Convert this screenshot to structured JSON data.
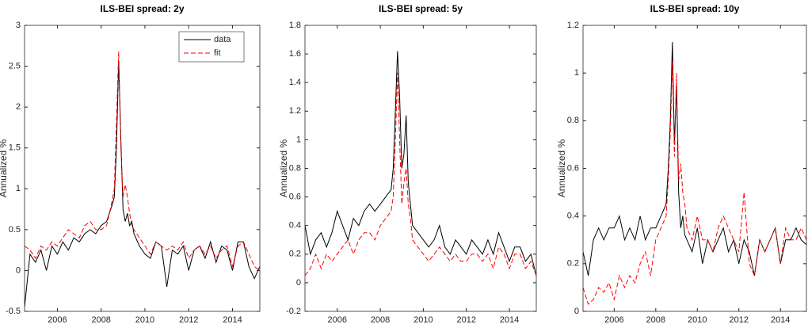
{
  "chart_data": [
    {
      "type": "line",
      "title": "ILS-BEI spread: 2y",
      "ylabel": "Annualized %",
      "legend": "northeast",
      "x": [
        2004.5,
        2004.75,
        2005,
        2005.25,
        2005.5,
        2005.75,
        2006,
        2006.25,
        2006.5,
        2006.75,
        2007,
        2007.25,
        2007.5,
        2007.75,
        2008,
        2008.25,
        2008.5,
        2008.6,
        2008.7,
        2008.8,
        2008.9,
        2009,
        2009.1,
        2009.2,
        2009.3,
        2009.4,
        2009.5,
        2009.75,
        2010,
        2010.25,
        2010.5,
        2010.75,
        2011,
        2011.25,
        2011.5,
        2011.75,
        2012,
        2012.25,
        2012.5,
        2012.75,
        2013,
        2013.25,
        2013.5,
        2013.75,
        2014,
        2014.25,
        2014.5,
        2014.75,
        2015,
        2015.25
      ],
      "xlim": [
        2004.5,
        2015.25
      ],
      "xticks": [
        2006,
        2008,
        2010,
        2012,
        2014
      ],
      "ylim": [
        -0.5,
        3
      ],
      "yticks": [
        -0.5,
        0,
        0.5,
        1,
        1.5,
        2,
        2.5,
        3
      ],
      "series": [
        {
          "name": "data",
          "color": "#000000",
          "dash": "solid",
          "values": [
            -0.45,
            0.2,
            0.1,
            0.25,
            0.0,
            0.3,
            0.2,
            0.35,
            0.25,
            0.4,
            0.35,
            0.45,
            0.5,
            0.45,
            0.55,
            0.6,
            0.8,
            0.9,
            1.5,
            2.55,
            1.6,
            0.75,
            0.6,
            0.7,
            0.55,
            0.6,
            0.45,
            0.3,
            0.2,
            0.15,
            0.35,
            0.3,
            -0.2,
            0.25,
            0.2,
            0.3,
            0.0,
            0.25,
            0.3,
            0.15,
            0.35,
            0.1,
            0.3,
            0.25,
            0.0,
            0.35,
            0.35,
            0.05,
            -0.1,
            0.05
          ]
        },
        {
          "name": "fit",
          "color": "#ff0000",
          "dash": "dashed",
          "values": [
            0.3,
            0.25,
            0.15,
            0.3,
            0.25,
            0.35,
            0.3,
            0.4,
            0.5,
            0.45,
            0.4,
            0.55,
            0.6,
            0.5,
            0.5,
            0.55,
            0.85,
            1.0,
            1.8,
            2.68,
            1.5,
            0.9,
            1.05,
            0.9,
            0.7,
            0.55,
            0.5,
            0.4,
            0.3,
            0.2,
            0.35,
            0.3,
            0.25,
            0.3,
            0.25,
            0.35,
            0.15,
            0.25,
            0.3,
            0.2,
            0.3,
            0.15,
            0.25,
            0.3,
            0.05,
            0.3,
            0.35,
            0.2,
            0.05,
            0.0
          ]
        }
      ]
    },
    {
      "type": "line",
      "title": "ILS-BEI spread: 5y",
      "ylabel": "Annualized %",
      "x": [
        2004.5,
        2004.75,
        2005,
        2005.25,
        2005.5,
        2005.75,
        2006,
        2006.25,
        2006.5,
        2006.75,
        2007,
        2007.25,
        2007.5,
        2007.75,
        2008,
        2008.25,
        2008.5,
        2008.6,
        2008.7,
        2008.8,
        2008.9,
        2009,
        2009.1,
        2009.2,
        2009.3,
        2009.4,
        2009.5,
        2009.75,
        2010,
        2010.25,
        2010.5,
        2010.75,
        2011,
        2011.25,
        2011.5,
        2011.75,
        2012,
        2012.25,
        2012.5,
        2012.75,
        2013,
        2013.25,
        2013.5,
        2013.75,
        2014,
        2014.25,
        2014.5,
        2014.75,
        2015,
        2015.25
      ],
      "xlim": [
        2004.5,
        2015.25
      ],
      "xticks": [
        2006,
        2008,
        2010,
        2012,
        2014
      ],
      "ylim": [
        -0.2,
        1.8
      ],
      "yticks": [
        -0.2,
        0,
        0.2,
        0.4,
        0.6,
        0.8,
        1,
        1.2,
        1.4,
        1.6,
        1.8
      ],
      "series": [
        {
          "name": "data",
          "color": "#000000",
          "dash": "solid",
          "values": [
            0.4,
            0.2,
            0.3,
            0.35,
            0.25,
            0.35,
            0.5,
            0.4,
            0.3,
            0.45,
            0.4,
            0.5,
            0.55,
            0.5,
            0.55,
            0.6,
            0.65,
            0.8,
            1.2,
            1.62,
            1.3,
            0.8,
            0.9,
            1.17,
            0.7,
            0.55,
            0.4,
            0.35,
            0.3,
            0.25,
            0.3,
            0.4,
            0.25,
            0.2,
            0.3,
            0.25,
            0.2,
            0.3,
            0.25,
            0.2,
            0.3,
            0.2,
            0.35,
            0.25,
            0.15,
            0.25,
            0.25,
            0.15,
            0.2,
            0.05
          ]
        },
        {
          "name": "fit",
          "color": "#ff0000",
          "dash": "dashed",
          "values": [
            0.05,
            0.1,
            0.2,
            0.1,
            0.2,
            0.15,
            0.2,
            0.25,
            0.3,
            0.2,
            0.3,
            0.35,
            0.35,
            0.3,
            0.4,
            0.45,
            0.5,
            0.6,
            1.0,
            1.47,
            1.0,
            0.55,
            0.7,
            0.8,
            0.55,
            0.45,
            0.3,
            0.25,
            0.2,
            0.15,
            0.2,
            0.25,
            0.2,
            0.15,
            0.2,
            0.15,
            0.15,
            0.2,
            0.2,
            0.15,
            0.2,
            0.1,
            0.25,
            0.2,
            0.1,
            0.2,
            0.2,
            0.1,
            0.15,
            0.05
          ]
        }
      ]
    },
    {
      "type": "line",
      "title": "ILS-BEI spread: 10y",
      "ylabel": "Annualized %",
      "x": [
        2004.5,
        2004.75,
        2005,
        2005.25,
        2005.5,
        2005.75,
        2006,
        2006.25,
        2006.5,
        2006.75,
        2007,
        2007.25,
        2007.5,
        2007.75,
        2008,
        2008.25,
        2008.5,
        2008.6,
        2008.7,
        2008.8,
        2008.9,
        2009,
        2009.1,
        2009.2,
        2009.3,
        2009.4,
        2009.5,
        2009.75,
        2010,
        2010.25,
        2010.5,
        2010.75,
        2011,
        2011.25,
        2011.5,
        2011.75,
        2012,
        2012.25,
        2012.5,
        2012.75,
        2013,
        2013.25,
        2013.5,
        2013.75,
        2014,
        2014.25,
        2014.5,
        2014.75,
        2015,
        2015.25
      ],
      "xlim": [
        2004.5,
        2015.25
      ],
      "xticks": [
        2006,
        2008,
        2010,
        2012,
        2014
      ],
      "ylim": [
        0,
        1.2
      ],
      "yticks": [
        0,
        0.2,
        0.4,
        0.6,
        0.8,
        1,
        1.2
      ],
      "series": [
        {
          "name": "data",
          "color": "#000000",
          "dash": "solid",
          "values": [
            0.25,
            0.15,
            0.3,
            0.35,
            0.3,
            0.35,
            0.35,
            0.4,
            0.3,
            0.35,
            0.3,
            0.4,
            0.3,
            0.35,
            0.35,
            0.4,
            0.45,
            0.6,
            0.8,
            1.13,
            0.7,
            0.95,
            0.5,
            0.35,
            0.4,
            0.32,
            0.3,
            0.25,
            0.35,
            0.2,
            0.3,
            0.25,
            0.3,
            0.35,
            0.25,
            0.3,
            0.2,
            0.3,
            0.25,
            0.15,
            0.3,
            0.25,
            0.3,
            0.35,
            0.2,
            0.3,
            0.3,
            0.35,
            0.3,
            0.28
          ]
        },
        {
          "name": "fit",
          "color": "#ff0000",
          "dash": "dashed",
          "values": [
            0.1,
            0.03,
            0.05,
            0.1,
            0.08,
            0.12,
            0.05,
            0.15,
            0.1,
            0.15,
            0.12,
            0.2,
            0.25,
            0.15,
            0.3,
            0.35,
            0.4,
            0.55,
            0.75,
            1.05,
            0.65,
            1.0,
            0.55,
            0.62,
            0.5,
            0.45,
            0.35,
            0.3,
            0.4,
            0.3,
            0.3,
            0.25,
            0.35,
            0.4,
            0.35,
            0.3,
            0.25,
            0.5,
            0.2,
            0.15,
            0.3,
            0.25,
            0.3,
            0.35,
            0.2,
            0.35,
            0.3,
            0.3,
            0.35,
            0.3
          ]
        }
      ]
    }
  ]
}
